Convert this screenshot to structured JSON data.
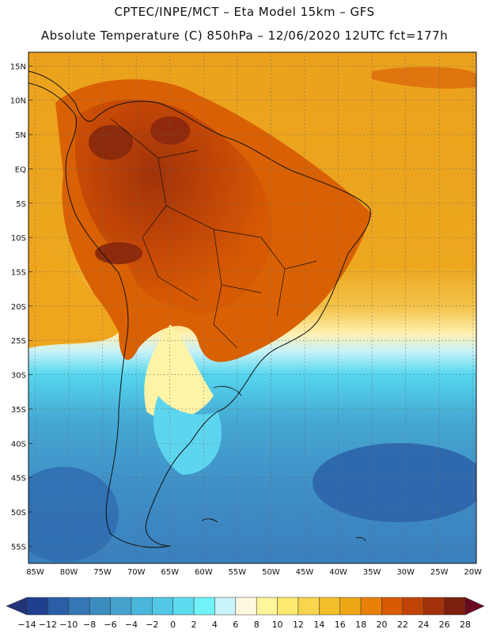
{
  "header": {
    "line1": "CPTEC/INPE/MCT –  Eta Model 15km – GFS",
    "line2": "Absolute Temperature (C) 850hPa – 12/06/2020 12UTC fct=177h"
  },
  "map": {
    "lat_labels": [
      "15N",
      "10N",
      "5N",
      "EQ",
      "5S",
      "10S",
      "15S",
      "20S",
      "25S",
      "30S",
      "35S",
      "40S",
      "45S",
      "50S",
      "55S"
    ],
    "lon_labels": [
      "85W",
      "80W",
      "75W",
      "70W",
      "65W",
      "60W",
      "55W",
      "50W",
      "45W",
      "40W",
      "35W",
      "30W",
      "25W",
      "20W"
    ],
    "grid": "dotted"
  },
  "colorbar": {
    "labels": [
      "-14",
      "-12",
      "-10",
      "-8",
      "-6",
      "-4",
      "-2",
      "0",
      "2",
      "4",
      "6",
      "8",
      "10",
      "12",
      "14",
      "16",
      "18",
      "20",
      "22",
      "24",
      "26",
      "28"
    ],
    "colors": [
      "#1f3f8f",
      "#2a5ea6",
      "#3478b5",
      "#3c8cc0",
      "#46a2cd",
      "#4bb6db",
      "#52c8e6",
      "#5cdcef",
      "#6ff2f8",
      "#c9f4fb",
      "#fff8e1",
      "#fff59a",
      "#fde96f",
      "#f8d54c",
      "#f3be2a",
      "#efa615",
      "#e98108",
      "#d85a03",
      "#c04406",
      "#a3320b",
      "#7c1f0d"
    ],
    "under_color": "#22337a",
    "over_color": "#6a0a22"
  }
}
